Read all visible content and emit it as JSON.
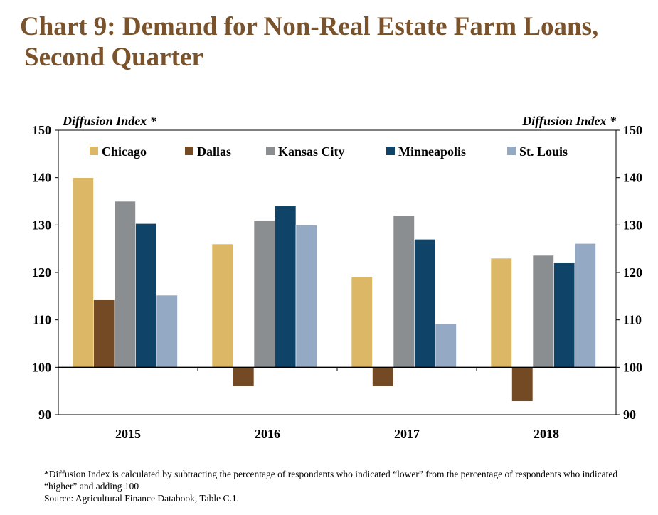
{
  "header": {
    "title_line1": "Chart 9: Demand for Non-Real Estate Farm Loans,",
    "title_line2": "Second Quarter"
  },
  "chart_data": {
    "type": "bar",
    "categories": [
      "2015",
      "2016",
      "2017",
      "2018"
    ],
    "series": [
      {
        "name": "Chicago",
        "color": "#dcb866",
        "values": [
          140,
          126,
          119,
          123
        ]
      },
      {
        "name": "Dallas",
        "color": "#744a24",
        "values": [
          114.2,
          96,
          96,
          92.8
        ]
      },
      {
        "name": "Kansas City",
        "color": "#8a8e91",
        "values": [
          135,
          131,
          132,
          123.6
        ]
      },
      {
        "name": "Minneapolis",
        "color": "#0f4468",
        "values": [
          130.3,
          134,
          127,
          122
        ]
      },
      {
        "name": "St. Louis",
        "color": "#93a9c4",
        "values": [
          115.2,
          130,
          109.1,
          126.1
        ]
      }
    ],
    "baseline": 100,
    "ylim": [
      90,
      150
    ],
    "yticks": [
      "150",
      "140",
      "130",
      "120",
      "110",
      "100",
      "90"
    ],
    "ylabel_left": "Diffusion Index *",
    "ylabel_right": "Diffusion Index *",
    "legend_position": "top"
  },
  "footnote": {
    "line1": "*Diffusion Index is calculated by subtracting the percentage of respondents who indicated “lower” from the percentage of respondents who indicated “higher” and adding 100",
    "source": "Source: Agricultural Finance Databook, Table C.1."
  }
}
